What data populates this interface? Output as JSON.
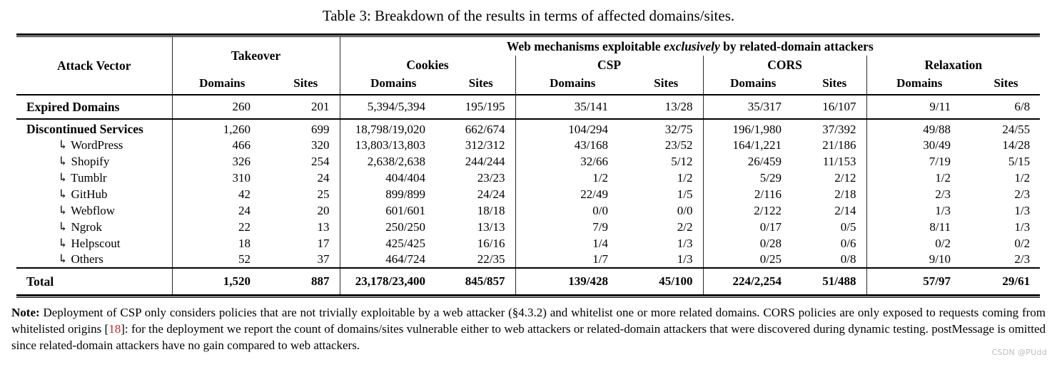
{
  "page": {
    "title": "Table 3: Breakdown of the results in terms of affected domains/sites.",
    "watermark": "CSDN @PUdd"
  },
  "table": {
    "header": {
      "attack_vector": "Attack Vector",
      "takeover": "Takeover",
      "web_mechanisms": {
        "prefix": "Web mechanisms exploitable ",
        "italic": "exclusively",
        "suffix": " by related-domain attackers"
      },
      "groups": [
        "Cookies",
        "CSP",
        "CORS",
        "Relaxation"
      ],
      "domains": "Domains",
      "sites": "Sites"
    },
    "columns": [
      "Takeover Domains",
      "Takeover Sites",
      "Cookies Domains",
      "Cookies Sites",
      "CSP Domains",
      "CSP Sites",
      "CORS Domains",
      "CORS Sites",
      "Relaxation Domains",
      "Relaxation Sites"
    ],
    "indent_glyph": "↳",
    "rows": [
      {
        "label": "Expired Domains",
        "section": "expired",
        "indent": false,
        "bold": true,
        "bold_values": false,
        "values": [
          "260",
          "201",
          "5,394/5,394",
          "195/195",
          "35/141",
          "13/28",
          "35/317",
          "16/107",
          "9/11",
          "6/8"
        ]
      },
      {
        "label": "Discontinued Services",
        "section": "services",
        "indent": false,
        "bold": true,
        "bold_values": false,
        "values": [
          "1,260",
          "699",
          "18,798/19,020",
          "662/674",
          "104/294",
          "32/75",
          "196/1,980",
          "37/392",
          "49/88",
          "24/55"
        ]
      },
      {
        "label": "WordPress",
        "section": "services",
        "indent": true,
        "bold": false,
        "bold_values": false,
        "values": [
          "466",
          "320",
          "13,803/13,803",
          "312/312",
          "43/168",
          "23/52",
          "164/1,221",
          "21/186",
          "30/49",
          "14/28"
        ]
      },
      {
        "label": "Shopify",
        "section": "services",
        "indent": true,
        "bold": false,
        "bold_values": false,
        "values": [
          "326",
          "254",
          "2,638/2,638",
          "244/244",
          "32/66",
          "5/12",
          "26/459",
          "11/153",
          "7/19",
          "5/15"
        ]
      },
      {
        "label": "Tumblr",
        "section": "services",
        "indent": true,
        "bold": false,
        "bold_values": false,
        "values": [
          "310",
          "24",
          "404/404",
          "23/23",
          "1/2",
          "1/2",
          "5/29",
          "2/12",
          "1/2",
          "1/2"
        ]
      },
      {
        "label": "GitHub",
        "section": "services",
        "indent": true,
        "bold": false,
        "bold_values": false,
        "values": [
          "42",
          "25",
          "899/899",
          "24/24",
          "22/49",
          "1/5",
          "2/116",
          "2/18",
          "2/3",
          "2/3"
        ]
      },
      {
        "label": "Webflow",
        "section": "services",
        "indent": true,
        "bold": false,
        "bold_values": false,
        "values": [
          "24",
          "20",
          "601/601",
          "18/18",
          "0/0",
          "0/0",
          "2/122",
          "2/14",
          "1/3",
          "1/3"
        ]
      },
      {
        "label": "Ngrok",
        "section": "services",
        "indent": true,
        "bold": false,
        "bold_values": false,
        "values": [
          "22",
          "13",
          "250/250",
          "13/13",
          "7/9",
          "2/2",
          "0/17",
          "0/5",
          "8/11",
          "1/3"
        ]
      },
      {
        "label": "Helpscout",
        "section": "services",
        "indent": true,
        "bold": false,
        "bold_values": false,
        "values": [
          "18",
          "17",
          "425/425",
          "16/16",
          "1/4",
          "1/3",
          "0/28",
          "0/6",
          "0/2",
          "0/2"
        ]
      },
      {
        "label": "Others",
        "section": "services",
        "indent": true,
        "bold": false,
        "bold_values": false,
        "values": [
          "52",
          "37",
          "464/724",
          "22/35",
          "1/7",
          "1/3",
          "0/25",
          "0/8",
          "9/10",
          "2/3"
        ]
      },
      {
        "label": "Total",
        "section": "total",
        "indent": false,
        "bold": true,
        "bold_values": true,
        "values": [
          "1,520",
          "887",
          "23,178/23,400",
          "845/857",
          "139/428",
          "45/100",
          "224/2,254",
          "51/488",
          "57/97",
          "29/61"
        ]
      }
    ]
  },
  "note": {
    "label": "Note:",
    "before_cite": " Deployment of CSP only considers policies that are not trivially exploitable by a web attacker (§4.3.2) and whitelist one or more related domains. CORS policies are only exposed to requests coming from whitelisted origins [",
    "cite": "18",
    "after_cite": "]: for the deployment we report the count of domains/sites vulnerable either to web attackers or related-domain attackers that were discovered during dynamic testing. postMessage is omitted since related-domain attackers have no gain compared to web attackers."
  }
}
